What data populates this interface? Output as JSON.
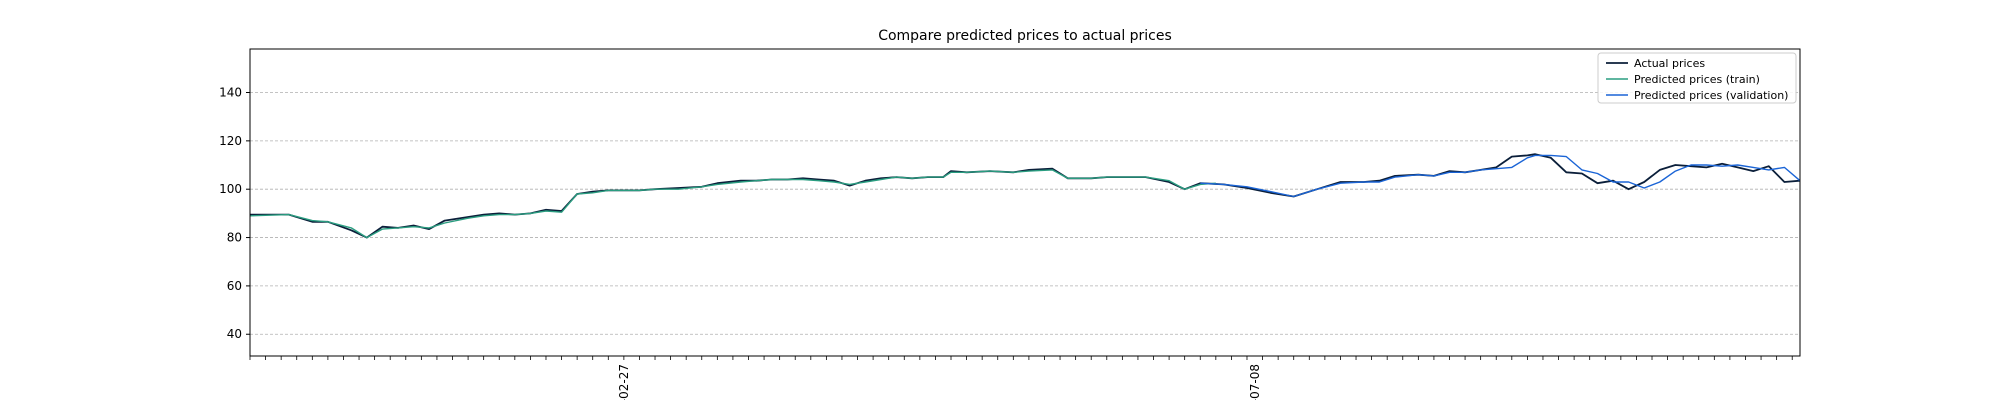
{
  "chart_data": {
    "type": "line",
    "title": "Compare predicted prices to actual prices",
    "xlabel": "",
    "ylabel": "",
    "ylim": [
      31,
      158
    ],
    "y_ticks": [
      40,
      60,
      80,
      100,
      120,
      140
    ],
    "x_count": 200,
    "x_tick_labels": [
      {
        "index": 48,
        "label": "-02-27"
      },
      {
        "index": 129,
        "label": "-07-08"
      }
    ],
    "grid": "horizontal-dashed",
    "legend_position": "top-right",
    "series": [
      {
        "name": "Actual prices",
        "color": "#0b1f3a",
        "x": [
          0,
          5,
          8,
          10,
          13,
          15,
          17,
          19,
          21,
          23,
          25,
          28,
          30,
          32,
          34,
          36,
          38,
          40,
          42,
          44,
          46,
          48,
          50,
          52,
          55,
          58,
          60,
          63,
          65,
          67,
          69,
          71,
          73,
          75,
          77,
          79,
          81,
          83,
          85,
          87,
          89,
          90,
          92,
          95,
          98,
          100,
          103,
          105,
          106,
          108,
          110,
          113,
          115,
          118,
          120,
          122,
          125,
          128,
          131,
          134,
          137,
          140,
          143,
          145,
          147,
          150,
          152,
          154,
          156,
          158,
          160,
          162,
          164,
          165,
          167,
          169,
          171,
          173,
          175,
          177,
          179,
          181,
          183,
          185,
          187,
          189,
          191,
          193,
          195,
          197,
          199
        ],
        "values": [
          89.5,
          89.5,
          86.5,
          86.5,
          83,
          80,
          84.5,
          84,
          85,
          83.5,
          87,
          88.5,
          89.5,
          90,
          89.5,
          90,
          91.5,
          91,
          98,
          99,
          99.5,
          99.5,
          99.5,
          100,
          100.5,
          101,
          102.5,
          103.5,
          103.5,
          104,
          104,
          104.5,
          104,
          103.5,
          101.5,
          103.5,
          104.5,
          105,
          104.5,
          105,
          105,
          107.5,
          107,
          107.5,
          107,
          108,
          108.5,
          104.5,
          104.5,
          104.5,
          105,
          105,
          105,
          103,
          100,
          102.5,
          102,
          100.5,
          98.5,
          97,
          100,
          103,
          103,
          103.5,
          105.5,
          106,
          105.5,
          107.5,
          107,
          108,
          109,
          113.5,
          114,
          114.5,
          113,
          107,
          106.5,
          102.5,
          103.5,
          100,
          103,
          108,
          110,
          109.5,
          109,
          110.5,
          109,
          107.5,
          109.5,
          103,
          103.5
        ]
      },
      {
        "name": "Predicted prices (train)",
        "color": "#2a9d80",
        "x": [
          0,
          5,
          8,
          10,
          13,
          15,
          17,
          19,
          21,
          23,
          25,
          28,
          30,
          32,
          34,
          36,
          38,
          40,
          42,
          44,
          46,
          48,
          50,
          52,
          55,
          58,
          60,
          63,
          65,
          67,
          69,
          71,
          73,
          75,
          77,
          79,
          81,
          83,
          85,
          87,
          89,
          90,
          92,
          95,
          98,
          100,
          103,
          105,
          106,
          108,
          110,
          113,
          115,
          118,
          120,
          122,
          124
        ],
        "values": [
          89,
          89.5,
          87,
          86.5,
          84,
          80,
          83.5,
          84,
          84.5,
          84,
          86,
          88,
          89,
          89.5,
          89.5,
          90,
          91,
          90.5,
          98,
          98.5,
          99.5,
          99.5,
          99.5,
          100,
          100,
          101,
          102,
          103,
          103.5,
          104,
          104,
          104,
          103.5,
          103,
          102,
          103,
          104,
          105,
          104.5,
          105,
          105,
          107,
          107,
          107.5,
          107,
          107.5,
          108,
          104.5,
          104.5,
          104.5,
          105,
          105,
          105,
          103.5,
          100,
          102,
          102.5
        ]
      },
      {
        "name": "Predicted prices (validation)",
        "color": "#1a64d6",
        "x": [
          122,
          125,
          128,
          131,
          134,
          137,
          140,
          143,
          145,
          147,
          150,
          152,
          154,
          156,
          158,
          160,
          162,
          164,
          165,
          167,
          169,
          171,
          173,
          175,
          177,
          179,
          181,
          183,
          185,
          187,
          189,
          191,
          193,
          195,
          197,
          199
        ],
        "values": [
          102.5,
          102,
          101,
          99,
          97,
          100,
          102.5,
          103,
          103,
          105,
          106,
          105.5,
          107,
          107,
          108,
          108.5,
          109,
          113,
          114,
          114,
          113.5,
          108,
          106.5,
          103,
          103,
          100.5,
          103,
          107.5,
          110,
          110,
          109.5,
          110,
          109,
          108,
          109,
          103.5
        ]
      }
    ]
  }
}
